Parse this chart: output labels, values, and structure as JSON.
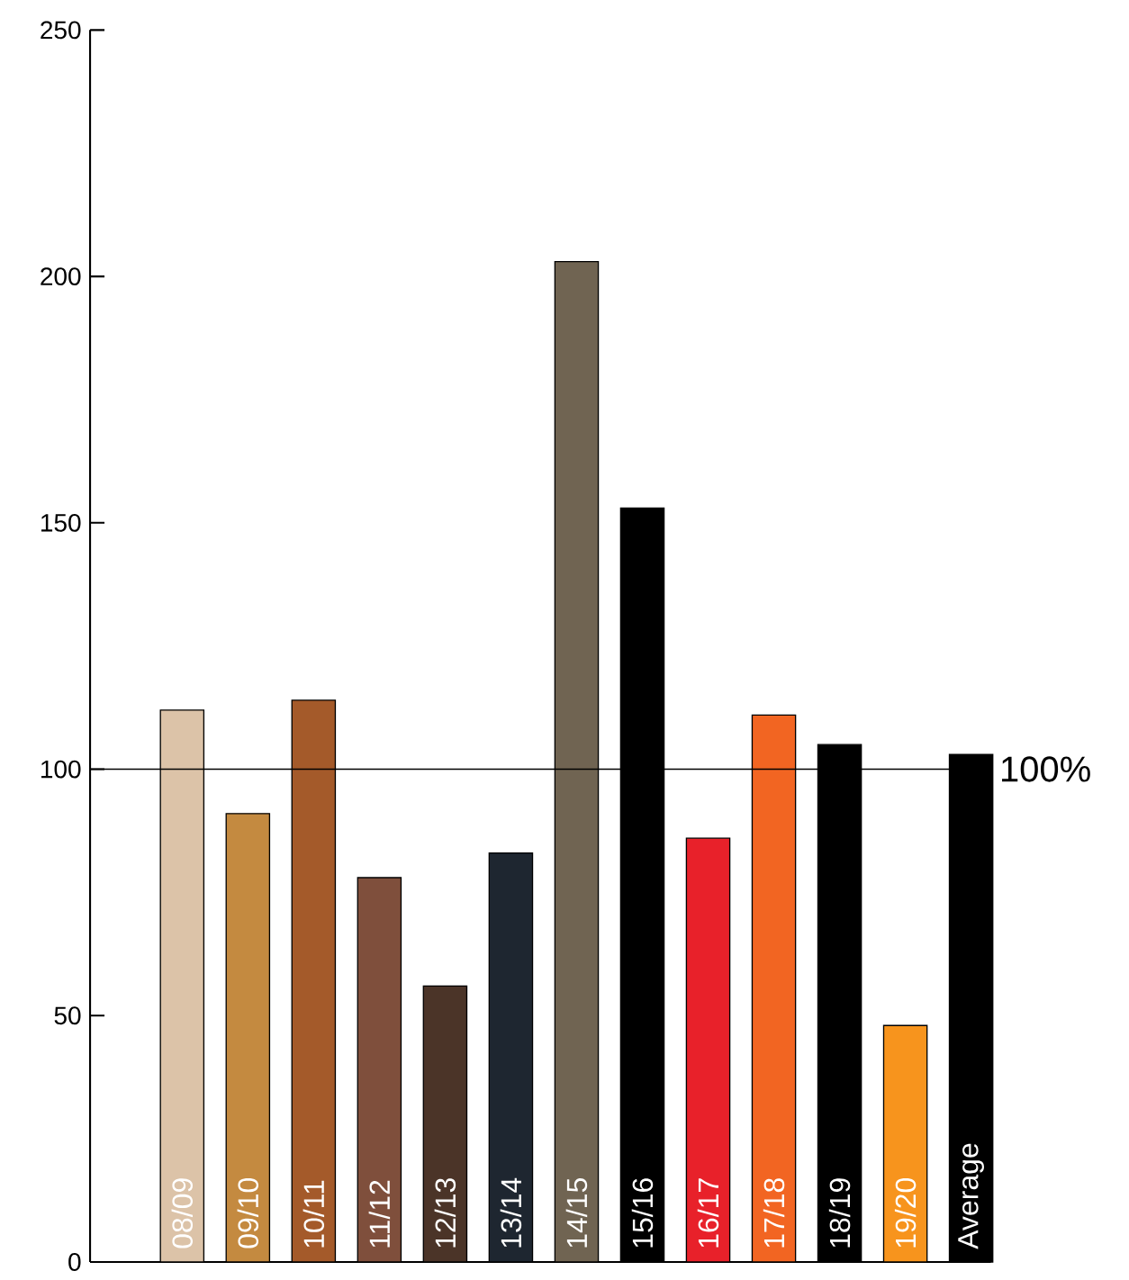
{
  "chart_data": {
    "type": "bar",
    "categories": [
      "08/09",
      "09/10",
      "10/11",
      "11/12",
      "12/13",
      "13/14",
      "14/15",
      "15/16",
      "16/17",
      "17/18",
      "18/19",
      "19/20",
      "Average"
    ],
    "values": [
      112,
      91,
      114,
      78,
      56,
      83,
      203,
      153,
      86,
      111,
      105,
      48,
      103
    ],
    "colors": [
      "#dcc3a8",
      "#c48a40",
      "#a45a2a",
      "#7f4f3c",
      "#4b3428",
      "#1e2630",
      "#706452",
      "#000000",
      "#e8212a",
      "#f26522",
      "#000000",
      "#f7941d",
      "#000000"
    ],
    "ylim": [
      0,
      250
    ],
    "yticks": [
      0,
      50,
      100,
      150,
      200,
      250
    ],
    "ref_lines": [
      {
        "axis": "y",
        "value": 100,
        "label": "100%",
        "color": "#000000"
      }
    ]
  }
}
